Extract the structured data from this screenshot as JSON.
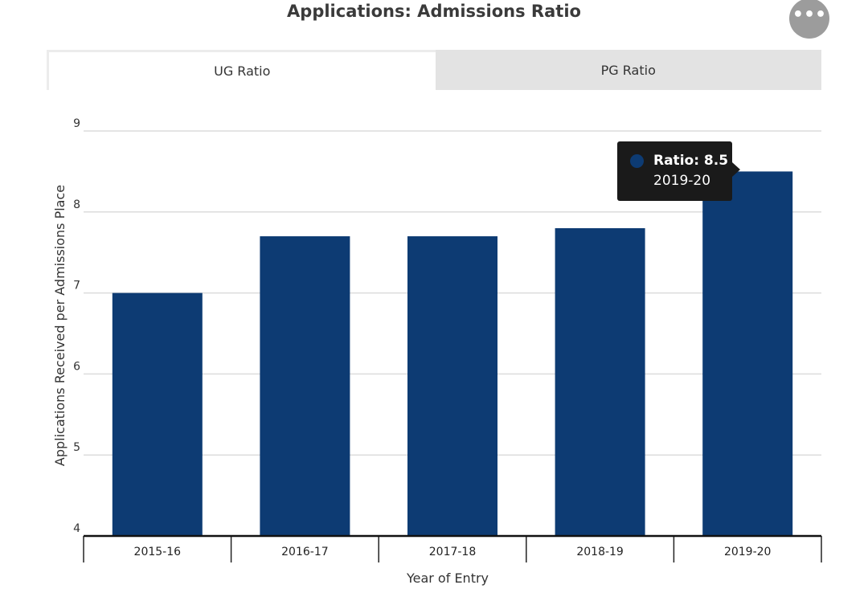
{
  "header": {
    "title": "Applications: Admissions Ratio",
    "menu_glyph": "•••",
    "menu_icon": "more-horizontal-icon"
  },
  "tabs": [
    {
      "label": "UG Ratio",
      "active": true
    },
    {
      "label": "PG Ratio",
      "active": false
    }
  ],
  "tooltip": {
    "value_text": "Ratio: 8.5",
    "category_text": "2019-20",
    "marker_color": "#0d3b73"
  },
  "colors": {
    "bar": "#0d3b73",
    "tooltip_bg": "#1a1a1a",
    "active_tab": "#ffffff",
    "inactive_tab": "#e3e3e3"
  },
  "chart_data": {
    "type": "bar",
    "title": "Applications: Admissions Ratio",
    "xlabel": "Year of Entry",
    "ylabel": "Applications Received per Admissions Place",
    "categories": [
      "2015-16",
      "2016-17",
      "2017-18",
      "2018-19",
      "2019-20"
    ],
    "series": [
      {
        "name": "Ratio",
        "values": [
          7.0,
          7.7,
          7.7,
          7.8,
          8.5
        ]
      }
    ],
    "ylim": [
      4,
      9
    ],
    "yticks": [
      4,
      5,
      6,
      7,
      8,
      9
    ],
    "grid": true,
    "legend": "none"
  }
}
